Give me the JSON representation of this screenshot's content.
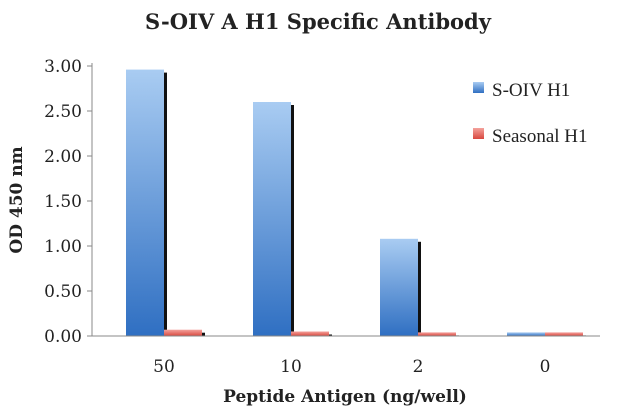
{
  "chart_data": {
    "type": "bar",
    "title": "S-OIV A H1 Specific Antibody",
    "xlabel": "Peptide Antigen (ng/well)",
    "ylabel": "OD 450 nm",
    "categories": [
      "50",
      "10",
      "2",
      "0"
    ],
    "series": [
      {
        "name": "S-OIV H1",
        "values": [
          2.96,
          2.6,
          1.08,
          0.04
        ]
      },
      {
        "name": "Seasonal H1",
        "values": [
          0.07,
          0.05,
          0.04,
          0.04
        ]
      }
    ],
    "ylim": [
      0,
      3.0
    ],
    "yticks": [
      "0.00",
      "0.50",
      "1.00",
      "1.50",
      "2.00",
      "2.50",
      "3.00"
    ],
    "grid": false,
    "legend_position": "right",
    "colors": {
      "S-OIV H1": "#4f8ad6",
      "Seasonal H1": "#e0605a"
    }
  }
}
